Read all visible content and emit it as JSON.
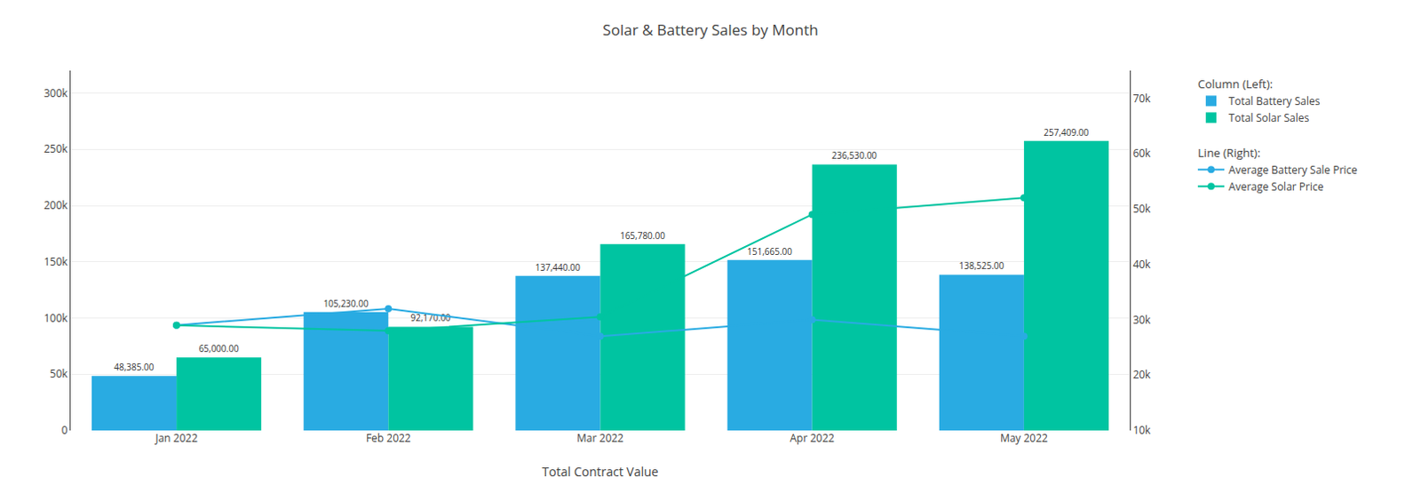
{
  "chart_data": {
    "type": "bar",
    "title": "Solar & Battery Sales by Month",
    "xlabel": "Total Contract Value",
    "categories": [
      "Jan 2022",
      "Feb 2022",
      "Mar 2022",
      "Apr 2022",
      "May 2022"
    ],
    "series": [
      {
        "name": "Total Battery Sales",
        "type": "bar",
        "color": "#29abe2",
        "values": [
          48385,
          105230,
          137440,
          151665,
          138525
        ],
        "value_labels": [
          "48,385.00",
          "105,230.00",
          "137,440.00",
          "151,665.00",
          "138,525.00"
        ]
      },
      {
        "name": "Total Solar Sales",
        "type": "bar",
        "color": "#00c4a1",
        "values": [
          65000,
          92170,
          165780,
          236530,
          257409
        ],
        "value_labels": [
          "65,000.00",
          "92,170.00",
          "165,780.00",
          "236,530.00",
          "257,409.00"
        ]
      },
      {
        "name": "Average Battery Sale Price",
        "type": "line",
        "axis": "y2",
        "color": "#29abe2",
        "marker": "circle",
        "values": [
          29000,
          32000,
          27000,
          30000,
          27000
        ]
      },
      {
        "name": "Average Solar Price",
        "type": "line",
        "axis": "y2",
        "color": "#00c4a1",
        "marker": "circle",
        "values": [
          29000,
          28000,
          30500,
          49000,
          52000
        ]
      }
    ],
    "ylim": [
      0,
      320000
    ],
    "yticks": [
      0,
      {
        "value": 50000,
        "label": "50k"
      },
      {
        "value": 100000,
        "label": "100k"
      },
      {
        "value": 150000,
        "label": "150k"
      },
      {
        "value": 200000,
        "label": "200k"
      },
      {
        "value": 250000,
        "label": "250k"
      },
      {
        "value": 300000,
        "label": "300k"
      }
    ],
    "y2lim": [
      10000,
      75000
    ],
    "y2ticks": [
      {
        "value": 10000,
        "label": "10k"
      },
      {
        "value": 20000,
        "label": "20k"
      },
      {
        "value": 30000,
        "label": "30k"
      },
      {
        "value": 40000,
        "label": "40k"
      },
      {
        "value": 50000,
        "label": "50k"
      },
      {
        "value": 60000,
        "label": "60k"
      },
      {
        "value": 70000,
        "label": "70k"
      }
    ],
    "grid": true,
    "legend": "right",
    "data_labels": true,
    "annotations": [
      "Column (Left):",
      "Line (Right):"
    ]
  }
}
